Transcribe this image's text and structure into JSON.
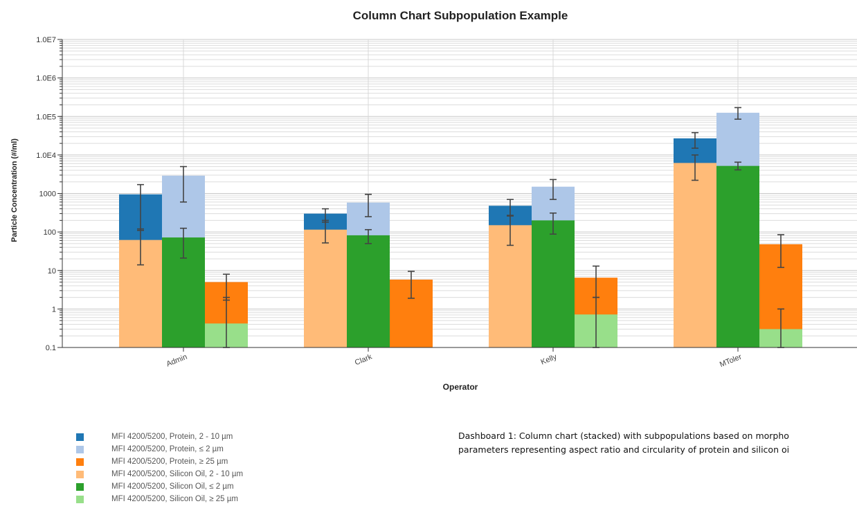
{
  "caption": {
    "line1": "Dashboard 1: Column chart (stacked) with subpopulations based on morpho",
    "line2": "parameters representing aspect ratio and circularity of protein and silicon oi"
  },
  "chart_data": {
    "type": "bar",
    "stacked": true,
    "title": "Column Chart Subpopulation Example",
    "xlabel": "Operator",
    "ylabel": "Particle Concentration (#/ml)",
    "yscale": "log",
    "ylim": [
      0.1,
      10000000
    ],
    "ytick_values": [
      0.1,
      1,
      10,
      100,
      1000,
      10000,
      100000,
      1000000,
      10000000
    ],
    "ytick_labels": [
      "0.1",
      "1",
      "10",
      "100",
      "1000",
      "1.0E4",
      "1.0E5",
      "1.0E6",
      "1.0E7"
    ],
    "grid": true,
    "categories": [
      "Admin",
      "Clark",
      "Kelly",
      "MToler"
    ],
    "series": [
      {
        "name": "MFI 4200/5200, Protein, 2 - 10 µm",
        "color": "#1f77b4",
        "stack": "2-10",
        "values": [
          950,
          300,
          480,
          27000
        ],
        "err_low": [
          110,
          180,
          260,
          15000
        ],
        "err_high": [
          1700,
          400,
          700,
          38000
        ]
      },
      {
        "name": "MFI 4200/5200, Protein, ≤ 2 µm",
        "color": "#aec7e8",
        "stack": "le2",
        "values": [
          2900,
          580,
          1500,
          125000
        ],
        "err_low": [
          600,
          250,
          700,
          85000
        ],
        "err_high": [
          5000,
          950,
          2300,
          170000
        ]
      },
      {
        "name": "MFI 4200/5200, Protein, ≥ 25 µm",
        "color": "#ff7f0e",
        "stack": "ge25",
        "values": [
          5,
          5.8,
          6.5,
          48
        ],
        "err_low": [
          1.7,
          1.9,
          2.0,
          12
        ],
        "err_high": [
          8,
          9.5,
          13,
          85
        ]
      },
      {
        "name": "MFI 4200/5200, Silicon Oil, 2 - 10 µm",
        "color": "#ffbb78",
        "stack": "2-10",
        "values": [
          62,
          115,
          150,
          6200
        ],
        "err_low": [
          14,
          52,
          45,
          2200
        ],
        "err_high": [
          120,
          200,
          270,
          10000
        ]
      },
      {
        "name": "MFI 4200/5200, Silicon Oil, ≤ 2 µm",
        "color": "#2ca02c",
        "stack": "le2",
        "values": [
          72,
          82,
          200,
          5200
        ],
        "err_low": [
          21,
          50,
          88,
          4100
        ],
        "err_high": [
          125,
          115,
          310,
          6500
        ]
      },
      {
        "name": "MFI 4200/5200, Silicon Oil, ≥ 25 µm",
        "color": "#98df8a",
        "stack": "ge25",
        "values": [
          0.42,
          null,
          0.72,
          0.3
        ],
        "err_low": [
          0.1,
          null,
          0.1,
          0.1
        ],
        "err_high": [
          2,
          null,
          2,
          1
        ]
      }
    ]
  }
}
